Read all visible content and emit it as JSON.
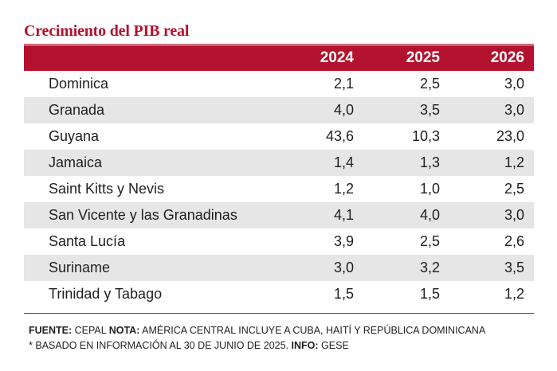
{
  "title": "Crecimiento del PIB real",
  "chart_data": {
    "type": "table",
    "title": "Crecimiento del PIB real",
    "columns": [
      "2024",
      "2025",
      "2026"
    ],
    "rows": [
      {
        "country": "Dominica",
        "values": [
          "2,1",
          "2,5",
          "3,0"
        ]
      },
      {
        "country": "Granada",
        "values": [
          "4,0",
          "3,5",
          "3,0"
        ]
      },
      {
        "country": "Guyana",
        "values": [
          "43,6",
          "10,3",
          "23,0"
        ]
      },
      {
        "country": "Jamaica",
        "values": [
          "1,4",
          "1,3",
          "1,2"
        ]
      },
      {
        "country": "Saint Kitts y Nevis",
        "values": [
          "1,2",
          "1,0",
          "2,5"
        ]
      },
      {
        "country": "San Vicente y las Granadinas",
        "values": [
          "4,1",
          "4,0",
          "3,0"
        ]
      },
      {
        "country": "Santa Lucía",
        "values": [
          "3,9",
          "2,5",
          "2,6"
        ]
      },
      {
        "country": "Suriname",
        "values": [
          "3,0",
          "3,2",
          "3,5"
        ]
      },
      {
        "country": "Trinidad y Tabago",
        "values": [
          "1,5",
          "1,5",
          "1,2"
        ]
      }
    ]
  },
  "notes": {
    "fuente_label": "FUENTE:",
    "fuente_value": " CEPAL ",
    "nota_label": "NOTA:",
    "nota_value": " AMÉRICA CENTRAL INCLUYE A CUBA, HAITÍ Y REPÚBLICA DOMINICANA",
    "line2_text": "* BASADO EN INFORMACIÓN AL 30 DE JUNIO DE 2025. ",
    "info_label": "INFO:",
    "info_value": " GESE"
  },
  "colors": {
    "accent": "#b3122e",
    "row_shade": "#e6e6e6"
  }
}
